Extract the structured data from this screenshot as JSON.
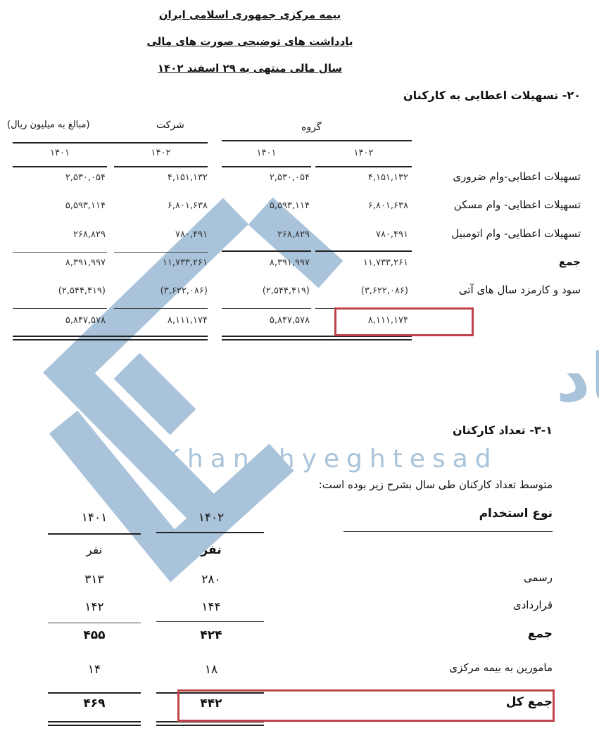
{
  "header": {
    "line1": "بیمه مرکزی جمهوری اسلامی ایران",
    "line2": "یادداشت های توضیحی صورت های مالی",
    "line3": "سال مالی منتهی به ۲۹ اسفند ۱۴۰۲"
  },
  "loans": {
    "title": "۲۰- تسهیلات اعطایی به کارکنان",
    "unit_note": "(مبالغ به میلیون ریال)",
    "company_label": "شرکت",
    "group_label": "گروه",
    "years": {
      "company_1401": "۱۴۰۱",
      "company_1402": "۱۴۰۲",
      "group_1401": "۱۴۰۱",
      "group_1402": "۱۴۰۲"
    },
    "rows": [
      {
        "label": "تسهیلات اعطایی-وام ضروری",
        "company_1401": "۲,۵۳۰,۰۵۴",
        "company_1402": "۴,۱۵۱,۱۳۲",
        "group_1401": "۲,۵۳۰,۰۵۴",
        "group_1402": "۴,۱۵۱,۱۳۲"
      },
      {
        "label": "تسهیلات اعطایی- وام مسکن",
        "company_1401": "۵,۵۹۳,۱۱۴",
        "company_1402": "۶,۸۰۱,۶۳۸",
        "group_1401": "۵,۵۹۳,۱۱۴",
        "group_1402": "۶,۸۰۱,۶۳۸"
      },
      {
        "label": "تسهیلات اعطایی- وام اتومبیل",
        "company_1401": "۲۶۸,۸۲۹",
        "company_1402": "۷۸۰,۴۹۱",
        "group_1401": "۲۶۸,۸۲۹",
        "group_1402": "۷۸۰,۴۹۱"
      },
      {
        "label": "جمع",
        "company_1401": "۸,۳۹۱,۹۹۷",
        "company_1402": "۱۱,۷۳۳,۲۶۱",
        "group_1401": "۸,۳۹۱,۹۹۷",
        "group_1402": "۱۱,۷۳۳,۲۶۱"
      },
      {
        "label": "سود و کارمزد سال های آتی",
        "company_1401": "(۲,۵۴۴,۴۱۹)",
        "company_1402": "(۳,۶۲۲,۰۸۶)",
        "group_1401": "(۲,۵۴۴,۴۱۹)",
        "group_1402": "(۳,۶۲۲,۰۸۶)"
      },
      {
        "label": "",
        "company_1401": "۵,۸۴۷,۵۷۸",
        "company_1402": "۸,۱۱۱,۱۷۴",
        "group_1401": "۵,۸۴۷,۵۷۸",
        "group_1402": "۸,۱۱۱,۱۷۴"
      }
    ]
  },
  "staff": {
    "title": "۳-۱- تعداد کارکنان",
    "description": "متوسط تعداد کارکنان طی سال بشرح زیر بوده است:",
    "type_header": "نوع استخدام",
    "year_1402": "۱۴۰۲",
    "year_1401": "۱۴۰۱",
    "unit_1402": "نفر",
    "unit_1401": "نفر",
    "rows": [
      {
        "label": "رسمی",
        "y1402": "۲۸۰",
        "y1401": "۳۱۳"
      },
      {
        "label": "قراردادی",
        "y1402": "۱۴۴",
        "y1401": "۱۴۲"
      },
      {
        "label": "جمع",
        "y1402": "۴۲۴",
        "y1401": "۴۵۵"
      },
      {
        "label": "مامورین به بیمه مرکزی",
        "y1402": "۱۸",
        "y1401": "۱۴"
      },
      {
        "label": "جمع کل",
        "y1402": "۴۴۲",
        "y1401": "۴۶۹"
      }
    ]
  },
  "watermark": {
    "text_fa": "خانه اقتصاد",
    "text_en": "Khanehyeghtesad",
    "color": "#a9c3da"
  },
  "highlight_color": "#c0434a"
}
